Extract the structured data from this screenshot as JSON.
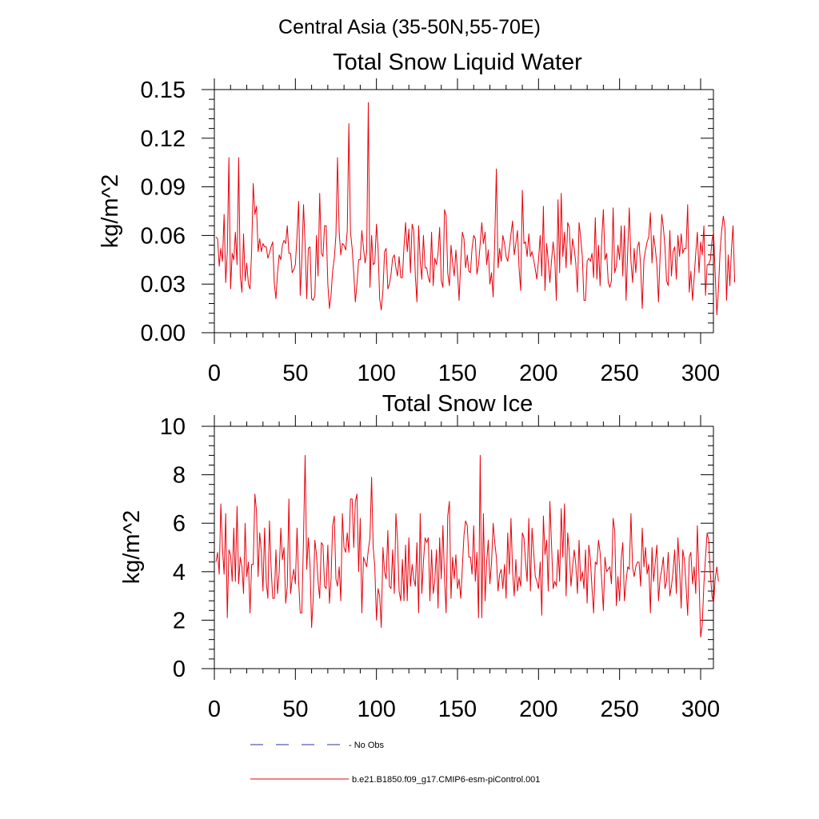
{
  "figure": {
    "suptitle": "Central Asia (35-50N,55-70E)"
  },
  "chart_data": [
    {
      "type": "line",
      "title": "Total Snow Liquid Water",
      "xlabel": "",
      "ylabel": "kg/m^2",
      "xlim": [
        0,
        300
      ],
      "ylim": [
        0,
        0.15
      ],
      "xticks": [
        0,
        50,
        100,
        150,
        200,
        250,
        300
      ],
      "yticks": [
        0,
        0.03,
        0.06,
        0.09,
        0.12,
        0.15
      ],
      "ytick_labels": [
        "0.00",
        "0.03",
        "0.06",
        "0.09",
        "0.12",
        "0.15"
      ],
      "series": [
        {
          "name": "b.e21.B1850.f09_g17.CMIP6-esm-piControl.001",
          "color": "#e8000b",
          "x_start": 1,
          "values": [
            0.059,
            0.058,
            0.041,
            0.052,
            0.044,
            0.073,
            0.031,
            0.05,
            0.108,
            0.027,
            0.049,
            0.045,
            0.062,
            0.042,
            0.108,
            0.035,
            0.025,
            0.061,
            0.032,
            0.043,
            0.03,
            0.027,
            0.05,
            0.092,
            0.073,
            0.078,
            0.05,
            0.058,
            0.05,
            0.055,
            0.053,
            0.053,
            0.046,
            0.049,
            0.053,
            0.056,
            0.03,
            0.021,
            0.037,
            0.048,
            0.045,
            0.054,
            0.057,
            0.055,
            0.066,
            0.049,
            0.049,
            0.037,
            0.039,
            0.042,
            0.06,
            0.081,
            0.023,
            0.045,
            0.079,
            0.054,
            0.021,
            0.052,
            0.053,
            0.021,
            0.02,
            0.023,
            0.06,
            0.035,
            0.086,
            0.049,
            0.047,
            0.066,
            0.066,
            0.03,
            0.015,
            0.023,
            0.038,
            0.046,
            0.06,
            0.108,
            0.062,
            0.048,
            0.055,
            0.054,
            0.051,
            0.063,
            0.129,
            0.062,
            0.052,
            0.037,
            0.019,
            0.03,
            0.045,
            0.045,
            0.063,
            0.052,
            0.043,
            0.05,
            0.142,
            0.028,
            0.06,
            0.042,
            0.043,
            0.067,
            0.052,
            0.021,
            0.014,
            0.026,
            0.05,
            0.052,
            0.027,
            0.03,
            0.036,
            0.046,
            0.048,
            0.04,
            0.035,
            0.047,
            0.034,
            0.034,
            0.053,
            0.068,
            0.05,
            0.064,
            0.037,
            0.067,
            0.063,
            0.035,
            0.019,
            0.066,
            0.044,
            0.033,
            0.06,
            0.04,
            0.04,
            0.034,
            0.031,
            0.062,
            0.029,
            0.046,
            0.042,
            0.049,
            0.065,
            0.032,
            0.028,
            0.076,
            0.072,
            0.037,
            0.029,
            0.054,
            0.043,
            0.035,
            0.051,
            0.038,
            0.02,
            0.044,
            0.062,
            0.058,
            0.04,
            0.048,
            0.038,
            0.037,
            0.052,
            0.06,
            0.058,
            0.036,
            0.042,
            0.055,
            0.068,
            0.055,
            0.062,
            0.042,
            0.051,
            0.03,
            0.037,
            0.022,
            0.057,
            0.101,
            0.04,
            0.052,
            0.044,
            0.06,
            0.055,
            0.047,
            0.044,
            0.052,
            0.061,
            0.069,
            0.048,
            0.055,
            0.063,
            0.04,
            0.026,
            0.088,
            0.055,
            0.056,
            0.047,
            0.061,
            0.047,
            0.05,
            0.045,
            0.039,
            0.033,
            0.045,
            0.06,
            0.035,
            0.078,
            0.026,
            0.055,
            0.044,
            0.031,
            0.044,
            0.056,
            0.046,
            0.02,
            0.082,
            0.037,
            0.086,
            0.047,
            0.062,
            0.04,
            0.068,
            0.065,
            0.042,
            0.058,
            0.052,
            0.043,
            0.025,
            0.068,
            0.059,
            0.047,
            0.02,
            0.02,
            0.044,
            0.046,
            0.044,
            0.049,
            0.034,
            0.071,
            0.033,
            0.054,
            0.029,
            0.058,
            0.076,
            0.045,
            0.049,
            0.031,
            0.028,
            0.032,
            0.077,
            0.037,
            0.041,
            0.054,
            0.045,
            0.066,
            0.035,
            0.066,
            0.02,
            0.05,
            0.077,
            0.044,
            0.031,
            0.052,
            0.037,
            0.053,
            0.056,
            0.041,
            0.015,
            0.045,
            0.051,
            0.056,
            0.059,
            0.074,
            0.043,
            0.06,
            0.052,
            0.042,
            0.019,
            0.047,
            0.073,
            0.065,
            0.053,
            0.032,
            0.029,
            0.063,
            0.035,
            0.05,
            0.053,
            0.033,
            0.06,
            0.047,
            0.061,
            0.049,
            0.052,
            0.052,
            0.079,
            0.025,
            0.038,
            0.02,
            0.034,
            0.049,
            0.062,
            0.037,
            0.056,
            0.048,
            0.066,
            0.023,
            0.042,
            0.042,
            0.045,
            0.057,
            0.062,
            0.036,
            0.011,
            0.027,
            0.05,
            0.063,
            0.072,
            0.065,
            0.02,
            0.048,
            0.029,
            0.051,
            0.066,
            0.031
          ]
        }
      ]
    },
    {
      "type": "line",
      "title": "Total Snow Ice",
      "xlabel": "",
      "ylabel": "kg/m^2",
      "xlim": [
        0,
        300
      ],
      "ylim": [
        0,
        10
      ],
      "xticks": [
        0,
        50,
        100,
        150,
        200,
        250,
        300
      ],
      "yticks": [
        0,
        2,
        4,
        6,
        8,
        10
      ],
      "ytick_labels": [
        "0",
        "2",
        "4",
        "6",
        "8",
        "10"
      ],
      "series": [
        {
          "name": "b.e21.B1850.f09_g17.CMIP6-esm-piControl.001",
          "color": "#e8000b",
          "x_start": 1,
          "values": [
            4.4,
            4.8,
            3.9,
            6.8,
            5.0,
            3.9,
            6.4,
            2.1,
            4.9,
            4.7,
            3.6,
            5.8,
            3.6,
            6.7,
            3.5,
            4.6,
            4.2,
            3.1,
            6.0,
            3.8,
            4.4,
            2.3,
            4.3,
            4.3,
            7.2,
            6.5,
            3.8,
            5.6,
            4.8,
            3.2,
            5.8,
            3.6,
            2.9,
            6.1,
            4.2,
            2.9,
            2.9,
            4.9,
            3.1,
            4.0,
            5.8,
            4.5,
            5.0,
            2.7,
            3.4,
            7.0,
            3.1,
            3.7,
            4.1,
            3.5,
            5.8,
            3.6,
            2.3,
            2.3,
            5.4,
            8.8,
            4.1,
            5.4,
            4.3,
            1.7,
            2.9,
            5.3,
            4.7,
            3.6,
            2.9,
            5.2,
            5.1,
            3.4,
            3.3,
            5.1,
            2.7,
            3.7,
            5.9,
            6.3,
            3.7,
            3.4,
            4.2,
            2.8,
            6.4,
            5.0,
            4.8,
            5.6,
            4.8,
            7.0,
            7.0,
            5.0,
            6.9,
            7.2,
            4.0,
            6.2,
            2.3,
            4.6,
            4.4,
            4.2,
            4.9,
            5.4,
            7.9,
            5.0,
            4.2,
            2.0,
            3.3,
            3.0,
            1.7,
            5.0,
            4.0,
            3.7,
            5.7,
            3.4,
            3.3,
            4.9,
            3.1,
            6.4,
            5.3,
            3.2,
            2.8,
            4.5,
            2.8,
            5.1,
            2.8,
            5.4,
            3.4,
            4.3,
            3.7,
            3.4,
            5.2,
            2.3,
            6.4,
            3.1,
            4.4,
            5.4,
            5.2,
            5.4,
            2.8,
            4.9,
            3.1,
            3.6,
            4.9,
            2.5,
            5.4,
            3.7,
            5.9,
            3.7,
            2.3,
            6.3,
            6.9,
            2.9,
            4.6,
            3.7,
            4.7,
            3.3,
            3.7,
            2.9,
            4.2,
            5.5,
            6.1,
            5.9,
            4.6,
            4.6,
            3.9,
            5.9,
            3.6,
            4.8,
            2.1,
            8.8,
            2.1,
            6.4,
            2.8,
            4.4,
            5.3,
            3.5,
            4.4,
            6.0,
            5.2,
            4.6,
            3.2,
            3.9,
            4.1,
            3.3,
            4.3,
            2.9,
            5.6,
            3.9,
            6.2,
            4.0,
            3.0,
            4.5,
            3.2,
            3.8,
            3.4,
            5.6,
            5.4,
            4.4,
            3.6,
            6.2,
            3.2,
            5.8,
            4.8,
            3.8,
            3.6,
            3.3,
            4.4,
            2.2,
            6.3,
            4.7,
            5.3,
            3.2,
            6.9,
            5.2,
            3.3,
            3.6,
            3.4,
            4.9,
            3.6,
            6.6,
            4.6,
            6.8,
            3.0,
            5.6,
            4.8,
            3.4,
            4.2,
            4.9,
            4.3,
            3.1,
            5.3,
            3.6,
            4.0,
            3.3,
            4.9,
            2.7,
            5.1,
            4.5,
            3.3,
            2.3,
            4.4,
            4.3,
            5.3,
            4.8,
            3.6,
            2.4,
            4.6,
            4.0,
            4.1,
            4.2,
            3.5,
            6.2,
            5.7,
            2.6,
            3.8,
            2.8,
            4.5,
            5.2,
            2.8,
            3.6,
            4.2,
            4.1,
            6.4,
            4.2,
            3.8,
            4.2,
            4.4,
            4.4,
            3.4,
            5.8,
            4.2,
            5.0,
            3.9,
            4.3,
            2.3,
            5.0,
            3.6,
            4.4,
            5.1,
            2.8,
            3.7,
            4.1,
            4.6,
            3.3,
            3.6,
            4.8,
            3.0,
            3.4,
            4.0,
            4.9,
            3.1,
            5.4,
            4.1,
            2.5,
            4.9,
            4.5,
            3.4,
            2.2,
            4.6,
            4.8,
            3.5,
            4.2,
            3.1,
            5.9,
            3.7,
            1.3,
            1.8,
            3.5,
            4.6,
            5.6,
            5.3,
            3.9,
            3.0,
            2.7,
            3.7,
            4.2,
            3.6
          ]
        }
      ]
    }
  ],
  "legend": {
    "placement": "bottom-left",
    "items": [
      {
        "label": "No Obs",
        "style": "dashed",
        "color": "#2b2fa0"
      },
      {
        "label": "b.e21.B1850.f09_g17.CMIP6-esm-piControl.001",
        "style": "solid",
        "color": "#e8000b"
      }
    ]
  }
}
